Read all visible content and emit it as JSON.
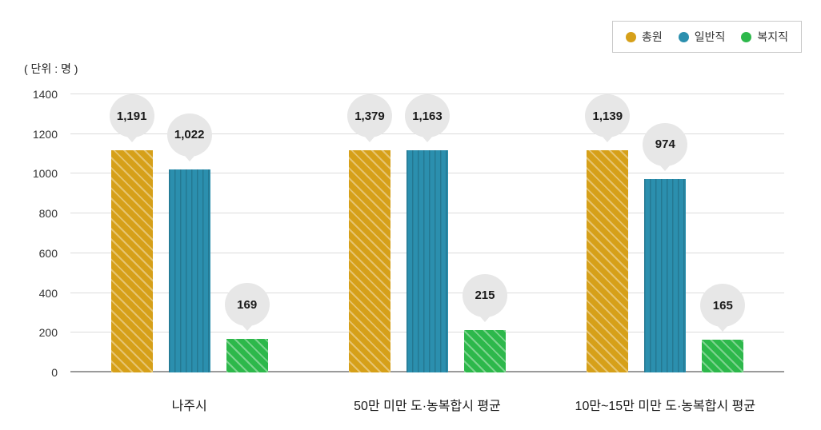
{
  "unit_label": "( 단위 : 명 )",
  "legend": [
    {
      "label": "총원",
      "color": "#d6a019"
    },
    {
      "label": "일반직",
      "color": "#2b8fae"
    },
    {
      "label": "복지직",
      "color": "#2db84b"
    }
  ],
  "chart_data": {
    "type": "bar",
    "title": "",
    "xlabel": "",
    "ylabel": "( 단위 : 명 )",
    "categories": [
      "나주시",
      "50만 미만 도·농복합시 평균",
      "10만~15만 미만 도·농복합시 평균"
    ],
    "series": [
      {
        "name": "총원",
        "color": "#d6a019",
        "pattern": "diagonal",
        "values": [
          1191,
          1379,
          1139
        ],
        "labels": [
          "1,191",
          "1,379",
          "1,139"
        ]
      },
      {
        "name": "일반직",
        "color": "#2b8fae",
        "pattern": "vertical",
        "values": [
          1022,
          1163,
          974
        ],
        "labels": [
          "1,022",
          "1,163",
          "974"
        ]
      },
      {
        "name": "복지직",
        "color": "#2db84b",
        "pattern": "diagonal",
        "values": [
          169,
          215,
          165
        ],
        "labels": [
          "169",
          "215",
          "165"
        ]
      }
    ],
    "ylim": [
      0,
      1400
    ],
    "yticks": [
      0,
      200,
      400,
      600,
      800,
      1000,
      1200,
      1400
    ],
    "grid": true,
    "legend_position": "top-right"
  }
}
